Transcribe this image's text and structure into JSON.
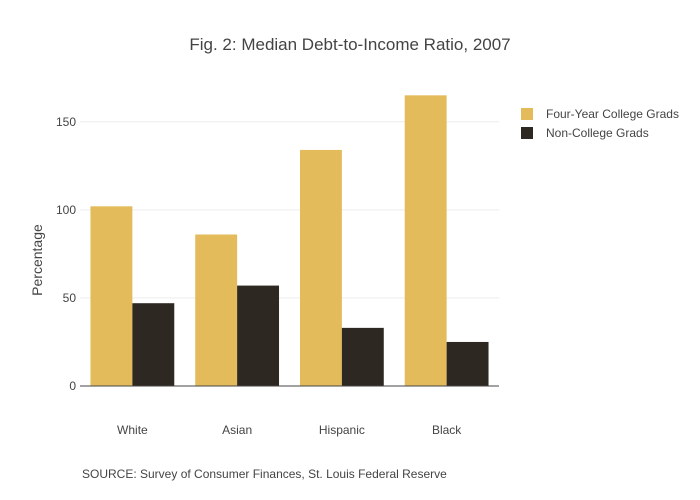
{
  "chart_data": {
    "type": "bar",
    "title": "Fig. 2: Median Debt-to-Income Ratio, 2007",
    "xlabel": "",
    "ylabel": "Percentage",
    "categories": [
      "White",
      "Asian",
      "Hispanic",
      "Black"
    ],
    "series": [
      {
        "name": "Four-Year College Grads",
        "color": "#e3bb5b",
        "values": [
          102,
          86,
          134,
          165
        ]
      },
      {
        "name": "Non-College Grads",
        "color": "#2e2822",
        "values": [
          47,
          57,
          33,
          25
        ]
      }
    ],
    "ylim": [
      0,
      173.7
    ],
    "yticks": [
      0,
      50,
      100,
      150
    ],
    "grid": true,
    "legend_position": "top-right"
  },
  "annotation": {
    "source": "SOURCE: Survey of Consumer Finances, St. Louis Federal Reserve"
  }
}
